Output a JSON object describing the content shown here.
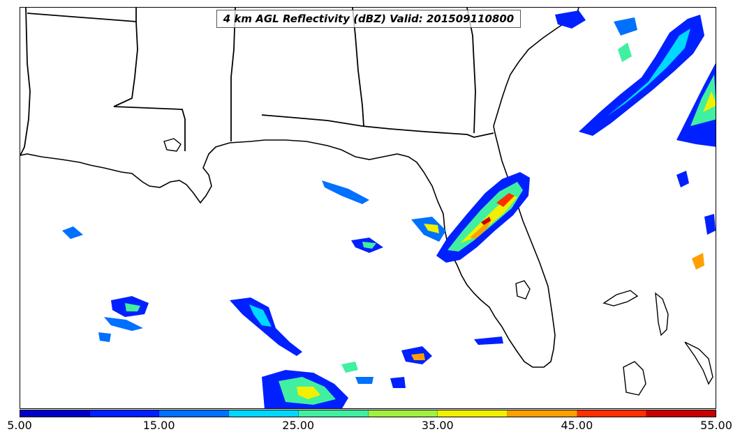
{
  "title": "4 km AGL Reflectivity (dBZ) Valid: 201509110800",
  "colorbar": {
    "colors": [
      "#0000c8",
      "#0020ff",
      "#0070ff",
      "#00d8ff",
      "#40f0a0",
      "#a0f040",
      "#f0f000",
      "#ffa000",
      "#ff3000",
      "#c80000"
    ],
    "ticks": [
      "5.00",
      "15.00",
      "25.00",
      "35.00",
      "45.00",
      "55.00"
    ]
  },
  "map": {
    "region": "US Gulf Coast and Florida",
    "features": [
      "state-boundaries",
      "coastline",
      "reflectivity-field"
    ]
  }
}
